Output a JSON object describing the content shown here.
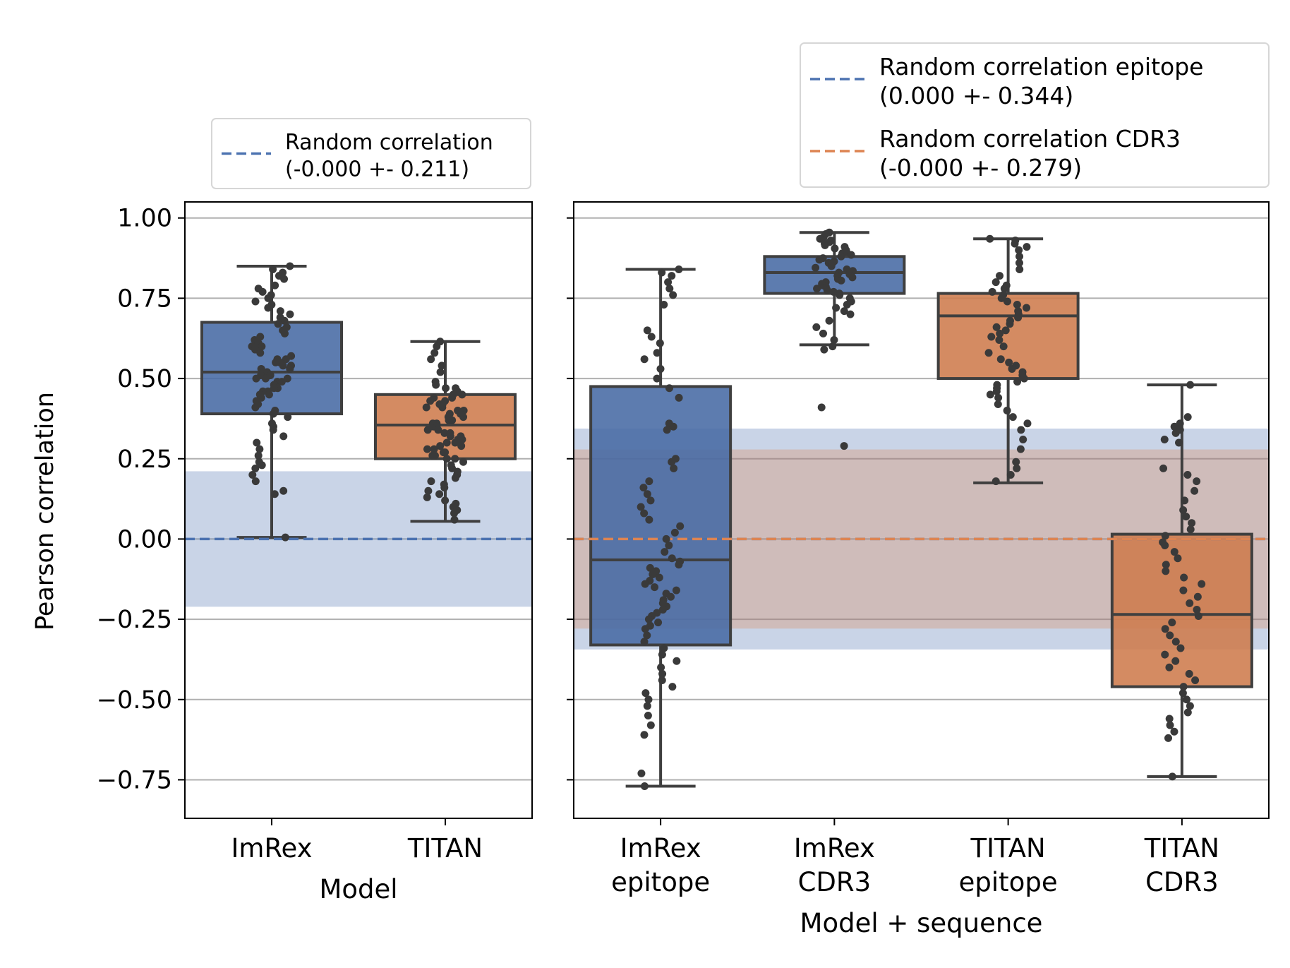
{
  "figure": {
    "ylabel": "Pearson correlation"
  },
  "chart_data": [
    {
      "type": "box",
      "xlabel": "Model",
      "ylabel": "Pearson correlation",
      "ylim": [
        -0.87,
        1.05
      ],
      "yticks": [
        1.0,
        0.75,
        0.5,
        0.25,
        0.0,
        -0.25,
        -0.5,
        -0.75
      ],
      "ytick_labels": [
        "1.00",
        "0.75",
        "0.50",
        "0.25",
        "0.00",
        "−0.25",
        "−0.50",
        "−0.75"
      ],
      "grid": "y",
      "categories": [
        [
          "ImRex"
        ],
        [
          "TITAN"
        ]
      ],
      "boxes": [
        {
          "q1": 0.39,
          "median": 0.52,
          "q3": 0.675,
          "whisker_low": 0.005,
          "whisker_high": 0.85,
          "color": "#4c72b0"
        },
        {
          "q1": 0.25,
          "median": 0.355,
          "q3": 0.45,
          "whisker_low": 0.055,
          "whisker_high": 0.615,
          "color": "#dd8452"
        }
      ],
      "points": [
        [
          0.85,
          0.84,
          0.83,
          0.82,
          0.82,
          0.81,
          0.79,
          0.78,
          0.77,
          0.76,
          0.75,
          0.74,
          0.73,
          0.72,
          0.71,
          0.7,
          0.69,
          0.68,
          0.67,
          0.66,
          0.65,
          0.64,
          0.63,
          0.62,
          0.61,
          0.6,
          0.6,
          0.59,
          0.58,
          0.57,
          0.56,
          0.56,
          0.55,
          0.55,
          0.54,
          0.54,
          0.53,
          0.53,
          0.52,
          0.52,
          0.51,
          0.51,
          0.5,
          0.5,
          0.5,
          0.49,
          0.49,
          0.48,
          0.48,
          0.47,
          0.47,
          0.46,
          0.46,
          0.45,
          0.45,
          0.44,
          0.43,
          0.42,
          0.41,
          0.4,
          0.39,
          0.38,
          0.36,
          0.35,
          0.34,
          0.32,
          0.3,
          0.28,
          0.26,
          0.24,
          0.23,
          0.22,
          0.2,
          0.18,
          0.15,
          0.14,
          0.005
        ],
        [
          0.615,
          0.6,
          0.58,
          0.56,
          0.54,
          0.52,
          0.49,
          0.48,
          0.47,
          0.47,
          0.46,
          0.46,
          0.45,
          0.45,
          0.44,
          0.44,
          0.43,
          0.43,
          0.42,
          0.42,
          0.41,
          0.41,
          0.4,
          0.4,
          0.39,
          0.39,
          0.38,
          0.38,
          0.37,
          0.37,
          0.36,
          0.36,
          0.35,
          0.35,
          0.34,
          0.34,
          0.33,
          0.33,
          0.32,
          0.32,
          0.31,
          0.31,
          0.3,
          0.3,
          0.29,
          0.29,
          0.28,
          0.28,
          0.27,
          0.27,
          0.26,
          0.26,
          0.25,
          0.25,
          0.24,
          0.23,
          0.22,
          0.21,
          0.2,
          0.19,
          0.18,
          0.17,
          0.16,
          0.15,
          0.14,
          0.13,
          0.12,
          0.11,
          0.1,
          0.09,
          0.08,
          0.06
        ]
      ],
      "random_bands": [
        {
          "mean": 0.0,
          "std": 0.211,
          "color": "#4c72b0"
        }
      ],
      "legend": {
        "position": "upper-center",
        "entries": [
          {
            "line1": "Random correlation",
            "line2": "(-0.000 +- 0.211)",
            "color": "#4c72b0"
          }
        ]
      }
    },
    {
      "type": "box",
      "xlabel": "Model + sequence",
      "ylim": [
        -0.87,
        1.05
      ],
      "grid": "y",
      "categories": [
        [
          "ImRex",
          "epitope"
        ],
        [
          "ImRex",
          "CDR3"
        ],
        [
          "TITAN",
          "epitope"
        ],
        [
          "TITAN",
          "CDR3"
        ]
      ],
      "boxes": [
        {
          "q1": -0.33,
          "median": -0.065,
          "q3": 0.475,
          "whisker_low": -0.77,
          "whisker_high": 0.84,
          "color": "#4c72b0"
        },
        {
          "q1": 0.765,
          "median": 0.83,
          "q3": 0.88,
          "whisker_low": 0.605,
          "whisker_high": 0.955,
          "color": "#4c72b0"
        },
        {
          "q1": 0.5,
          "median": 0.695,
          "q3": 0.765,
          "whisker_low": 0.175,
          "whisker_high": 0.935,
          "color": "#dd8452"
        },
        {
          "q1": -0.46,
          "median": -0.235,
          "q3": 0.015,
          "whisker_low": -0.74,
          "whisker_high": 0.48,
          "color": "#dd8452"
        }
      ],
      "points": [
        [
          0.84,
          0.83,
          0.82,
          0.8,
          0.78,
          0.76,
          0.73,
          0.65,
          0.63,
          0.61,
          0.58,
          0.56,
          0.53,
          0.5,
          0.47,
          0.44,
          0.36,
          0.35,
          0.34,
          0.25,
          0.24,
          0.22,
          0.18,
          0.16,
          0.14,
          0.12,
          0.1,
          0.08,
          0.06,
          0.04,
          0.02,
          0.0,
          -0.02,
          -0.04,
          -0.06,
          -0.07,
          -0.08,
          -0.09,
          -0.1,
          -0.11,
          -0.12,
          -0.13,
          -0.14,
          -0.15,
          -0.16,
          -0.17,
          -0.18,
          -0.19,
          -0.2,
          -0.21,
          -0.22,
          -0.23,
          -0.24,
          -0.25,
          -0.26,
          -0.27,
          -0.28,
          -0.3,
          -0.32,
          -0.34,
          -0.36,
          -0.38,
          -0.4,
          -0.42,
          -0.44,
          -0.46,
          -0.48,
          -0.5,
          -0.52,
          -0.55,
          -0.58,
          -0.61,
          -0.73,
          -0.77
        ],
        [
          0.955,
          0.95,
          0.94,
          0.935,
          0.93,
          0.925,
          0.92,
          0.915,
          0.91,
          0.905,
          0.9,
          0.895,
          0.89,
          0.885,
          0.88,
          0.875,
          0.87,
          0.865,
          0.86,
          0.855,
          0.85,
          0.845,
          0.84,
          0.835,
          0.83,
          0.825,
          0.82,
          0.815,
          0.81,
          0.805,
          0.8,
          0.795,
          0.79,
          0.785,
          0.78,
          0.775,
          0.77,
          0.765,
          0.76,
          0.75,
          0.74,
          0.73,
          0.72,
          0.71,
          0.7,
          0.68,
          0.66,
          0.64,
          0.62,
          0.6,
          0.59,
          0.41,
          0.29
        ],
        [
          0.935,
          0.93,
          0.92,
          0.91,
          0.9,
          0.88,
          0.86,
          0.84,
          0.82,
          0.8,
          0.79,
          0.78,
          0.77,
          0.76,
          0.75,
          0.74,
          0.73,
          0.72,
          0.71,
          0.7,
          0.69,
          0.68,
          0.67,
          0.66,
          0.65,
          0.64,
          0.63,
          0.62,
          0.6,
          0.58,
          0.56,
          0.55,
          0.54,
          0.53,
          0.52,
          0.51,
          0.5,
          0.49,
          0.48,
          0.47,
          0.46,
          0.45,
          0.44,
          0.42,
          0.4,
          0.38,
          0.36,
          0.34,
          0.31,
          0.28,
          0.24,
          0.22,
          0.2,
          0.18
        ],
        [
          0.48,
          0.38,
          0.36,
          0.35,
          0.34,
          0.33,
          0.31,
          0.3,
          0.22,
          0.2,
          0.18,
          0.15,
          0.12,
          0.09,
          0.07,
          0.05,
          0.03,
          0.01,
          -0.01,
          -0.02,
          -0.04,
          -0.06,
          -0.08,
          -0.1,
          -0.12,
          -0.14,
          -0.16,
          -0.18,
          -0.2,
          -0.22,
          -0.24,
          -0.26,
          -0.28,
          -0.3,
          -0.32,
          -0.34,
          -0.36,
          -0.38,
          -0.4,
          -0.42,
          -0.44,
          -0.46,
          -0.48,
          -0.5,
          -0.52,
          -0.54,
          -0.56,
          -0.58,
          -0.6,
          -0.62,
          -0.74
        ]
      ],
      "random_bands": [
        {
          "mean": 0.0,
          "std": 0.344,
          "color": "#4c72b0"
        },
        {
          "mean": 0.0,
          "std": 0.279,
          "color": "#dd8452"
        }
      ],
      "legend": {
        "position": "upper-right",
        "entries": [
          {
            "line1": "Random correlation epitope",
            "line2": "(0.000 +- 0.344)",
            "color": "#4c72b0"
          },
          {
            "line1": "Random correlation CDR3",
            "line2": "(-0.000 +- 0.279)",
            "color": "#dd8452"
          }
        ]
      }
    }
  ]
}
